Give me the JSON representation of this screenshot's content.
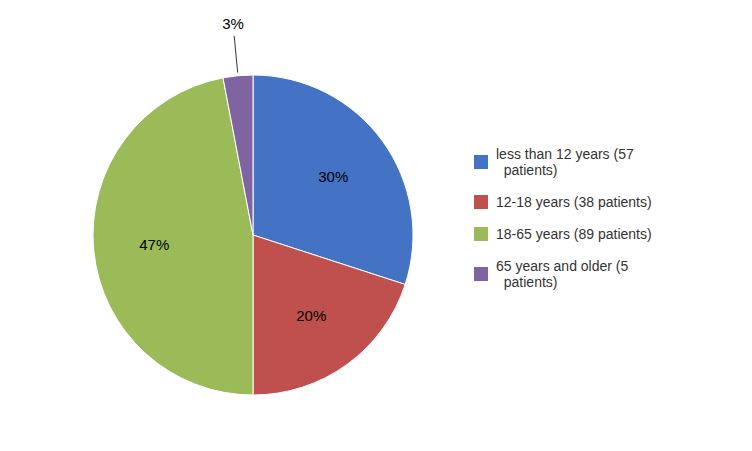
{
  "chart_data": {
    "type": "pie",
    "categories": [
      "less than 12 years (57\n  patients)",
      "12-18 years (38 patients)",
      "18-65 years (89 patients)",
      "65 years and older (5\n  patients)"
    ],
    "values": [
      30,
      20,
      47,
      3
    ],
    "value_labels": [
      "30%",
      "20%",
      "47%",
      "3%"
    ],
    "data_labels": true,
    "colors": [
      "#4472C4",
      "#C0504D",
      "#9BBB59",
      "#8064A2"
    ]
  }
}
